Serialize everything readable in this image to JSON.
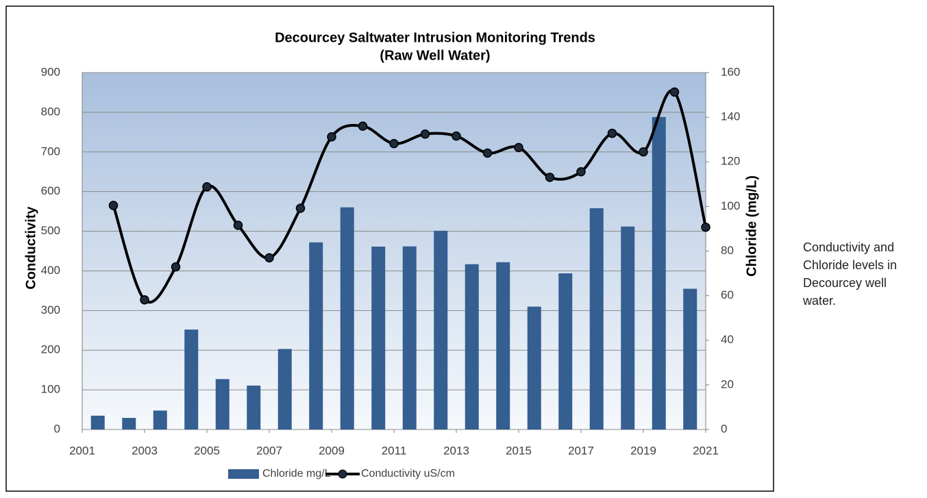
{
  "chart_data": {
    "type": "bar_line_combo",
    "title": "Decourcey Saltwater Intrusion Monitoring Trends",
    "subtitle": "(Raw Well Water)",
    "ylabel": "Conductivity",
    "y2label": "Chloride (mg/L)",
    "xlim": [
      2001,
      2021
    ],
    "xticks": [
      2001,
      2003,
      2005,
      2007,
      2009,
      2011,
      2013,
      2015,
      2017,
      2019,
      2021
    ],
    "ylim": [
      0,
      900
    ],
    "yticks": [
      0,
      100,
      200,
      300,
      400,
      500,
      600,
      700,
      800,
      900
    ],
    "y2lim": [
      0,
      160
    ],
    "y2ticks": [
      0,
      20,
      40,
      60,
      80,
      100,
      120,
      140,
      160
    ],
    "grid": true,
    "legend": "bottom",
    "series": [
      {
        "name": "Chloride mg/L",
        "type": "bar",
        "axis": "y2",
        "color": "#355e91",
        "x": [
          2001.5,
          2002.5,
          2003.5,
          2004.5,
          2005.5,
          2006.5,
          2007.5,
          2008.5,
          2009.5,
          2010.5,
          2011.5,
          2012.5,
          2013.5,
          2014.5,
          2015.5,
          2016.5,
          2017.5,
          2018.5,
          2019.5,
          2020.5
        ],
        "values": [
          6.2,
          5.2,
          8.5,
          44.8,
          22.6,
          19.7,
          36.1,
          83.9,
          99.6,
          82,
          82.1,
          89.1,
          74.1,
          75,
          55.1,
          70,
          99.2,
          91,
          140.1,
          63.1
        ]
      },
      {
        "name": "Conductivity uS/cm",
        "type": "line",
        "color": "#000000",
        "x": [
          2002,
          2003,
          2004,
          2005,
          2006,
          2007,
          2008,
          2009,
          2010,
          2011,
          2012,
          2013,
          2014,
          2015,
          2016,
          2017,
          2018,
          2019,
          2020,
          2021
        ],
        "values": [
          565,
          327,
          410,
          612,
          515,
          433,
          558,
          738,
          765,
          721,
          745,
          740,
          697,
          711,
          636,
          650,
          747,
          700,
          851,
          510
        ]
      }
    ]
  },
  "side_note": "Conductivity and Chloride levels in Decourcey well water."
}
